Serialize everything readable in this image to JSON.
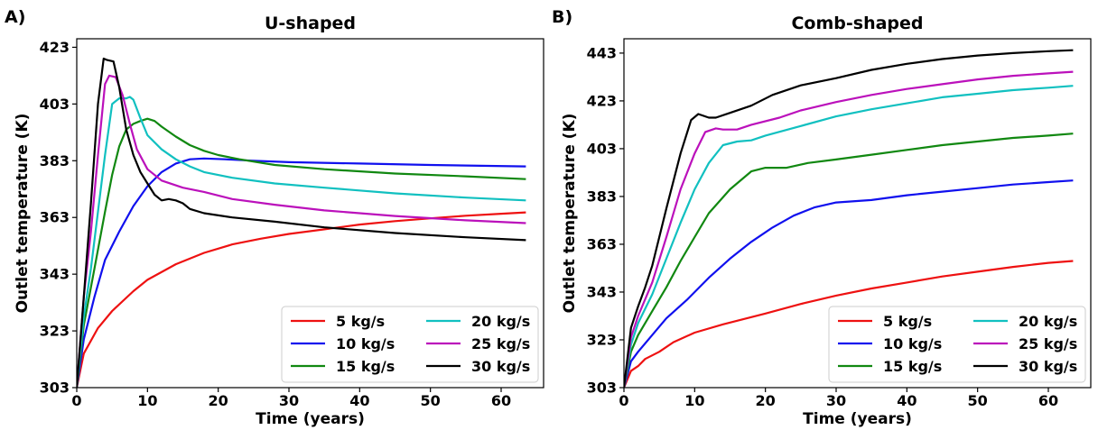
{
  "chart_data": [
    {
      "panel": "A)",
      "type": "line",
      "title": "U-shaped",
      "xlabel": "Time (years)",
      "ylabel": "Outlet temperature (K)",
      "xlim": [
        0,
        66
      ],
      "ylim": [
        303,
        426
      ],
      "xticks": [
        0,
        10,
        20,
        30,
        40,
        50,
        60
      ],
      "yticks": [
        303,
        323,
        343,
        363,
        383,
        403,
        423
      ],
      "legend": "lower-right",
      "series": [
        {
          "name": "5 kg/s",
          "color": "#ee1111",
          "points": [
            [
              0,
              303
            ],
            [
              1,
              315
            ],
            [
              3,
              324
            ],
            [
              5,
              330
            ],
            [
              8,
              337
            ],
            [
              10,
              341
            ],
            [
              14,
              346.5
            ],
            [
              18,
              350.5
            ],
            [
              22,
              353.5
            ],
            [
              26,
              355.5
            ],
            [
              30,
              357.2
            ],
            [
              35,
              358.8
            ],
            [
              40,
              360.5
            ],
            [
              45,
              361.7
            ],
            [
              50,
              362.7
            ],
            [
              55,
              363.6
            ],
            [
              60,
              364.3
            ],
            [
              63.5,
              364.8
            ]
          ]
        },
        {
          "name": "10 kg/s",
          "color": "#1010ee",
          "points": [
            [
              0,
              303
            ],
            [
              1,
              320
            ],
            [
              2.5,
              335
            ],
            [
              4,
              348
            ],
            [
              6,
              358
            ],
            [
              8,
              367
            ],
            [
              10,
              374
            ],
            [
              12,
              379
            ],
            [
              14,
              382
            ],
            [
              16,
              383.5
            ],
            [
              18,
              383.8
            ],
            [
              21,
              383.5
            ],
            [
              25,
              383
            ],
            [
              30,
              382.5
            ],
            [
              40,
              382
            ],
            [
              50,
              381.5
            ],
            [
              63.5,
              381
            ]
          ]
        },
        {
          "name": "15 kg/s",
          "color": "#118811",
          "points": [
            [
              0,
              303
            ],
            [
              1,
              325
            ],
            [
              2.5,
              345
            ],
            [
              4,
              365
            ],
            [
              5,
              378
            ],
            [
              6,
              388
            ],
            [
              7,
              394
            ],
            [
              8,
              396
            ],
            [
              9,
              397
            ],
            [
              10,
              397.8
            ],
            [
              11,
              397
            ],
            [
              12,
              395
            ],
            [
              14,
              391.5
            ],
            [
              16,
              388.5
            ],
            [
              18,
              386.5
            ],
            [
              20,
              385
            ],
            [
              23,
              383.5
            ],
            [
              28,
              381.5
            ],
            [
              35,
              380
            ],
            [
              45,
              378.5
            ],
            [
              55,
              377.5
            ],
            [
              63.5,
              376.5
            ]
          ]
        },
        {
          "name": "20 kg/s",
          "color": "#11c0c0",
          "points": [
            [
              0,
              303
            ],
            [
              1,
              328
            ],
            [
              2,
              345
            ],
            [
              3,
              365
            ],
            [
              4,
              385
            ],
            [
              5,
              403
            ],
            [
              6,
              405
            ],
            [
              7,
              405
            ],
            [
              7.5,
              405.5
            ],
            [
              8,
              404.5
            ],
            [
              9,
              398
            ],
            [
              10,
              392
            ],
            [
              12,
              387
            ],
            [
              14,
              383.5
            ],
            [
              16,
              381
            ],
            [
              18,
              379
            ],
            [
              22,
              377
            ],
            [
              28,
              375
            ],
            [
              35,
              373.5
            ],
            [
              45,
              371.5
            ],
            [
              55,
              370
            ],
            [
              63.5,
              369
            ]
          ]
        },
        {
          "name": "25 kg/s",
          "color": "#bb11bb",
          "points": [
            [
              0,
              303
            ],
            [
              1,
              335
            ],
            [
              2,
              358
            ],
            [
              3,
              385
            ],
            [
              4,
              410
            ],
            [
              4.6,
              413
            ],
            [
              5.5,
              412.5
            ],
            [
              6.5,
              406
            ],
            [
              7.5,
              396
            ],
            [
              8.5,
              387
            ],
            [
              10,
              380
            ],
            [
              12,
              376
            ],
            [
              15,
              373.5
            ],
            [
              18,
              372
            ],
            [
              22,
              369.5
            ],
            [
              28,
              367.5
            ],
            [
              35,
              365.5
            ],
            [
              45,
              363.5
            ],
            [
              55,
              362
            ],
            [
              63.5,
              361
            ]
          ]
        },
        {
          "name": "30 kg/s",
          "color": "#000000",
          "points": [
            [
              0,
              303
            ],
            [
              1,
              335
            ],
            [
              2,
              368
            ],
            [
              3,
              403
            ],
            [
              3.8,
              419
            ],
            [
              4.3,
              418.5
            ],
            [
              5.2,
              418
            ],
            [
              6,
              409
            ],
            [
              7,
              394
            ],
            [
              8,
              385
            ],
            [
              9,
              379
            ],
            [
              10,
              375
            ],
            [
              11,
              371
            ],
            [
              12,
              369
            ],
            [
              13,
              369.5
            ],
            [
              14,
              369
            ],
            [
              15,
              368
            ],
            [
              16,
              366
            ],
            [
              18,
              364.5
            ],
            [
              22,
              363
            ],
            [
              28,
              361.5
            ],
            [
              35,
              359.5
            ],
            [
              45,
              357.5
            ],
            [
              55,
              356
            ],
            [
              63.5,
              355
            ]
          ]
        }
      ]
    },
    {
      "panel": "B)",
      "type": "line",
      "title": "Comb-shaped",
      "xlabel": "Time (years)",
      "ylabel": "Outlet temperature (K)",
      "xlim": [
        0,
        66
      ],
      "ylim": [
        303,
        449
      ],
      "xticks": [
        0,
        10,
        20,
        30,
        40,
        50,
        60
      ],
      "yticks": [
        303,
        323,
        343,
        363,
        383,
        403,
        423,
        443
      ],
      "legend": "lower-right",
      "series": [
        {
          "name": "5 kg/s",
          "color": "#ee1111",
          "points": [
            [
              0,
              303
            ],
            [
              1,
              310
            ],
            [
              2,
              312
            ],
            [
              3,
              315
            ],
            [
              5,
              318
            ],
            [
              7,
              322
            ],
            [
              10,
              326
            ],
            [
              14,
              329.5
            ],
            [
              20,
              334
            ],
            [
              25,
              338
            ],
            [
              30,
              341.5
            ],
            [
              35,
              344.5
            ],
            [
              40,
              347
            ],
            [
              45,
              349.5
            ],
            [
              50,
              351.5
            ],
            [
              55,
              353.5
            ],
            [
              60,
              355.2
            ],
            [
              63.5,
              356
            ]
          ]
        },
        {
          "name": "10 kg/s",
          "color": "#1010ee",
          "points": [
            [
              0,
              303
            ],
            [
              1,
              314
            ],
            [
              2,
              318
            ],
            [
              4,
              325
            ],
            [
              6,
              332
            ],
            [
              9,
              340
            ],
            [
              12,
              349
            ],
            [
              15,
              357
            ],
            [
              18,
              364
            ],
            [
              21,
              370
            ],
            [
              24,
              375
            ],
            [
              27,
              378.5
            ],
            [
              30,
              380.5
            ],
            [
              35,
              381.5
            ],
            [
              40,
              383.5
            ],
            [
              45,
              385
            ],
            [
              50,
              386.5
            ],
            [
              55,
              388
            ],
            [
              60,
              389
            ],
            [
              63.5,
              389.7
            ]
          ]
        },
        {
          "name": "15 kg/s",
          "color": "#118811",
          "points": [
            [
              0,
              303
            ],
            [
              1,
              318
            ],
            [
              2,
              325
            ],
            [
              4,
              335
            ],
            [
              6,
              345
            ],
            [
              8,
              356
            ],
            [
              10,
              366
            ],
            [
              12,
              376
            ],
            [
              15,
              386
            ],
            [
              18,
              393.5
            ],
            [
              20,
              395
            ],
            [
              23,
              395
            ],
            [
              26,
              397
            ],
            [
              30,
              398.5
            ],
            [
              35,
              400.5
            ],
            [
              40,
              402.5
            ],
            [
              45,
              404.5
            ],
            [
              50,
              406
            ],
            [
              55,
              407.5
            ],
            [
              60,
              408.5
            ],
            [
              63.5,
              409.3
            ]
          ]
        },
        {
          "name": "20 kg/s",
          "color": "#11c0c0",
          "points": [
            [
              0,
              303
            ],
            [
              1,
              321
            ],
            [
              2,
              330
            ],
            [
              4,
              342
            ],
            [
              6,
              357
            ],
            [
              8,
              372
            ],
            [
              10,
              386
            ],
            [
              12,
              397
            ],
            [
              14,
              404.5
            ],
            [
              16,
              406
            ],
            [
              18,
              406.5
            ],
            [
              20,
              408.5
            ],
            [
              25,
              412.5
            ],
            [
              30,
              416.5
            ],
            [
              35,
              419.5
            ],
            [
              40,
              422
            ],
            [
              45,
              424.5
            ],
            [
              50,
              426
            ],
            [
              55,
              427.5
            ],
            [
              60,
              428.5
            ],
            [
              63.5,
              429.3
            ]
          ]
        },
        {
          "name": "25 kg/s",
          "color": "#bb11bb",
          "points": [
            [
              0,
              303
            ],
            [
              1,
              324
            ],
            [
              2,
              333
            ],
            [
              4,
              347
            ],
            [
              6,
              366
            ],
            [
              8,
              386
            ],
            [
              10,
              401
            ],
            [
              11.5,
              410
            ],
            [
              13,
              411.5
            ],
            [
              14,
              411
            ],
            [
              16,
              411
            ],
            [
              18,
              413
            ],
            [
              22,
              416
            ],
            [
              25,
              419
            ],
            [
              30,
              422.5
            ],
            [
              35,
              425.5
            ],
            [
              40,
              428
            ],
            [
              45,
              430
            ],
            [
              50,
              432
            ],
            [
              55,
              433.5
            ],
            [
              60,
              434.5
            ],
            [
              63.5,
              435.2
            ]
          ]
        },
        {
          "name": "30 kg/s",
          "color": "#000000",
          "points": [
            [
              0,
              303
            ],
            [
              1,
              328
            ],
            [
              2,
              337
            ],
            [
              3,
              345
            ],
            [
              4,
              354
            ],
            [
              6,
              378
            ],
            [
              8,
              401
            ],
            [
              9.5,
              415
            ],
            [
              10.5,
              417.5
            ],
            [
              12,
              416
            ],
            [
              13,
              416
            ],
            [
              15,
              418
            ],
            [
              18,
              421
            ],
            [
              21,
              425.5
            ],
            [
              25,
              429.5
            ],
            [
              30,
              432.5
            ],
            [
              35,
              436
            ],
            [
              40,
              438.5
            ],
            [
              45,
              440.5
            ],
            [
              50,
              442
            ],
            [
              55,
              443
            ],
            [
              60,
              443.8
            ],
            [
              63.5,
              444.2
            ]
          ]
        }
      ]
    }
  ]
}
